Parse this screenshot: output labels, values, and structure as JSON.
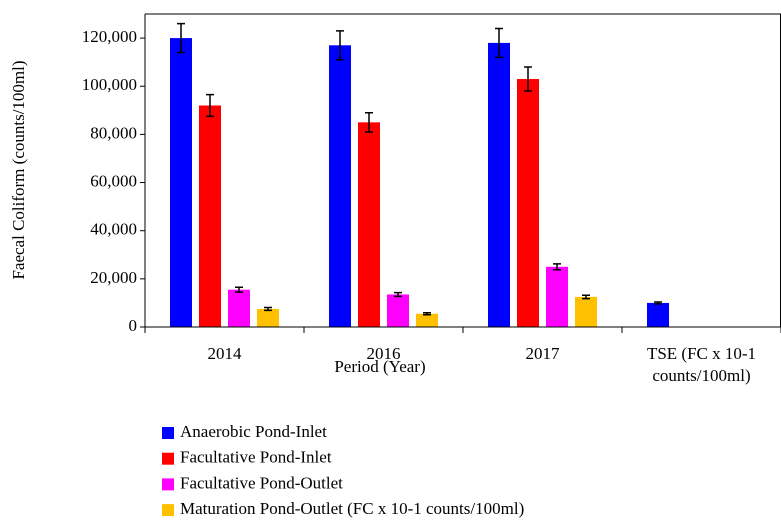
{
  "chart_data": {
    "type": "bar",
    "ylabel": "Faecal Coliform (counts/100ml)",
    "xlabel": "Period (Year)",
    "categories": [
      "2014",
      "2016",
      "2017",
      "TSE  (FC x 10-1 counts/100ml)"
    ],
    "series": [
      {
        "name": "Anaerobic Pond-Inlet",
        "color": "#0000ff",
        "values": [
          120000,
          117000,
          118000,
          10000
        ],
        "errors": [
          6000,
          6000,
          6000,
          400
        ]
      },
      {
        "name": "Facultative Pond-Inlet",
        "color": "#ff0000",
        "values": [
          92000,
          85000,
          103000,
          null
        ],
        "errors": [
          4500,
          4000,
          5000,
          null
        ]
      },
      {
        "name": "Facultative Pond-Outlet",
        "color": "#ff00ff",
        "values": [
          15500,
          13500,
          25000,
          null
        ],
        "errors": [
          1000,
          800,
          1200,
          null
        ]
      },
      {
        "name": "Maturation Pond-Outlet (FC x 10-1 counts/100ml)",
        "color": "#ffc000",
        "values": [
          7500,
          5500,
          12500,
          null
        ],
        "errors": [
          600,
          400,
          700,
          null
        ]
      }
    ],
    "ylim": [
      0,
      130000
    ],
    "yticks": [
      0,
      {
        "value": 20000,
        "label": "20,000"
      },
      {
        "value": 40000,
        "label": "40,000"
      },
      {
        "value": 60000,
        "label": "60,000"
      },
      {
        "value": 80000,
        "label": "80,000"
      },
      {
        "value": 100000,
        "label": "100,000"
      },
      {
        "value": 120000,
        "label": "120,000"
      }
    ],
    "legend": "bottom"
  }
}
